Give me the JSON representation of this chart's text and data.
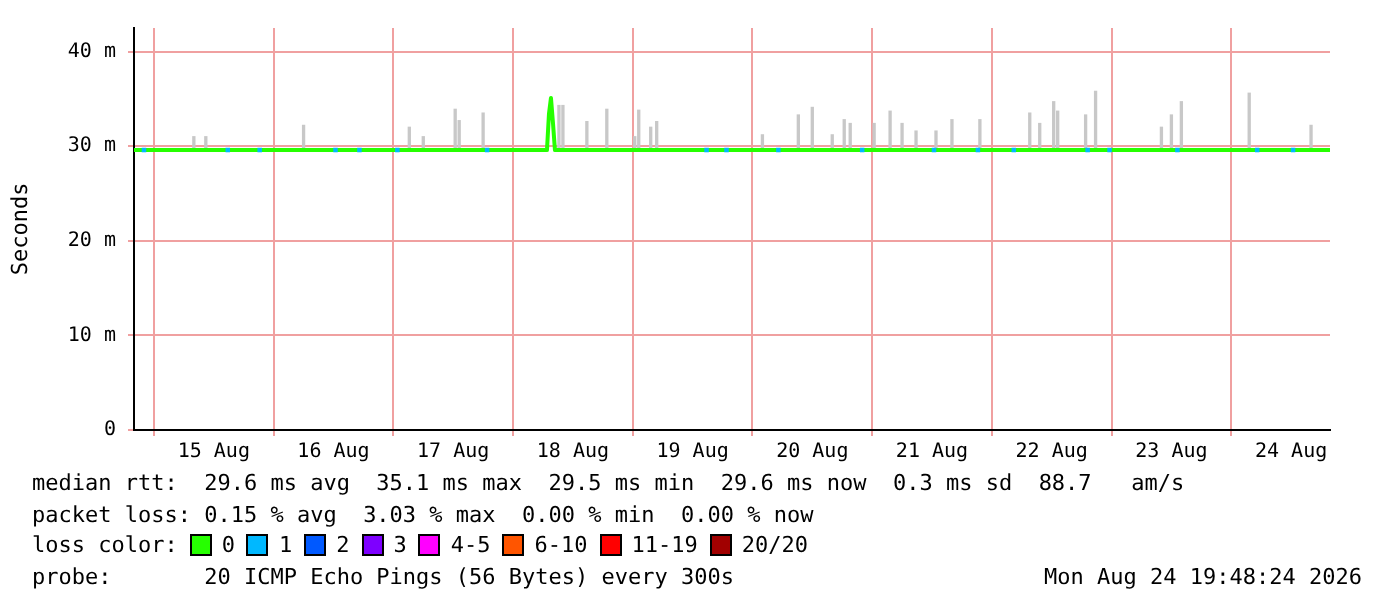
{
  "chart_data": {
    "type": "line",
    "ylabel": "Seconds",
    "legend_title": "loss color:",
    "legend": "bottom",
    "grid": true,
    "xlim": [
      "2026-08-14T20:00",
      "2026-08-24T19:48"
    ],
    "xticks": [
      {
        "value": "2026-08-15T12:00",
        "label": "15 Aug"
      },
      {
        "value": "2026-08-16T12:00",
        "label": "16 Aug"
      },
      {
        "value": "2026-08-17T12:00",
        "label": "17 Aug"
      },
      {
        "value": "2026-08-18T12:00",
        "label": "18 Aug"
      },
      {
        "value": "2026-08-19T12:00",
        "label": "19 Aug"
      },
      {
        "value": "2026-08-20T12:00",
        "label": "20 Aug"
      },
      {
        "value": "2026-08-21T12:00",
        "label": "21 Aug"
      },
      {
        "value": "2026-08-22T12:00",
        "label": "22 Aug"
      },
      {
        "value": "2026-08-23T12:00",
        "label": "23 Aug"
      },
      {
        "value": "2026-08-24T12:00",
        "label": "24 Aug"
      }
    ],
    "ylim": [
      0,
      42.5
    ],
    "yticks": [
      0,
      {
        "value": 10,
        "label": "10 m"
      },
      {
        "value": 20,
        "label": "20 m"
      },
      {
        "value": 30,
        "label": "30 m"
      },
      {
        "value": 40,
        "label": "40 m"
      }
    ],
    "series": [
      {
        "type": "bar",
        "color": "#c8c8c8",
        "base": [
          29.6,
          29.6,
          29.6,
          29.6,
          29.6,
          29.6,
          29.6,
          29.6,
          29.6,
          29.6,
          29.6,
          29.6,
          29.6,
          29.6,
          29.6,
          29.6,
          29.6,
          29.6,
          29.6,
          29.6,
          29.6,
          29.6,
          29.6,
          29.6,
          29.6,
          29.6,
          29.6,
          29.6,
          29.6,
          29.6,
          29.6,
          29.6,
          29.6,
          29.6,
          29.6,
          29.6,
          29.6,
          29.6,
          29.6,
          29.6
        ],
        "x": [
          "2026-08-15T08:00",
          "2026-08-15T10:24",
          "2026-08-16T06:00",
          "2026-08-17T03:12",
          "2026-08-17T06:00",
          "2026-08-17T12:24",
          "2026-08-17T13:12",
          "2026-08-17T18:00",
          "2026-08-18T09:12",
          "2026-08-18T10:00",
          "2026-08-18T14:48",
          "2026-08-18T18:48",
          "2026-08-19T00:24",
          "2026-08-19T01:12",
          "2026-08-19T03:36",
          "2026-08-19T04:48",
          "2026-08-20T02:00",
          "2026-08-20T09:12",
          "2026-08-20T12:00",
          "2026-08-20T16:00",
          "2026-08-20T18:24",
          "2026-08-20T19:36",
          "2026-08-21T00:24",
          "2026-08-21T03:36",
          "2026-08-21T06:00",
          "2026-08-21T08:48",
          "2026-08-21T12:48",
          "2026-08-21T16:00",
          "2026-08-21T21:36",
          "2026-08-22T07:36",
          "2026-08-22T09:36",
          "2026-08-22T12:24",
          "2026-08-22T13:12",
          "2026-08-22T18:48",
          "2026-08-22T20:48",
          "2026-08-23T10:00",
          "2026-08-23T12:00",
          "2026-08-23T14:00",
          "2026-08-24T03:36",
          "2026-08-24T16:00"
        ],
        "values": [
          1.4,
          1.4,
          2.6,
          2.4,
          1.4,
          4.3,
          3.1,
          3.9,
          4.7,
          4.7,
          3.0,
          4.3,
          1.4,
          4.2,
          2.4,
          3.0,
          1.6,
          3.7,
          4.5,
          1.6,
          3.2,
          2.8,
          2.8,
          4.1,
          2.8,
          2.0,
          2.0,
          3.2,
          3.2,
          3.9,
          2.8,
          5.1,
          4.1,
          3.7,
          6.2,
          2.4,
          3.7,
          5.1,
          6.0,
          2.6
        ]
      },
      {
        "name": "0",
        "color": "#26ff00",
        "marker": "none",
        "x": [
          "2026-08-14T20:00",
          "2026-08-16T00:00",
          "2026-08-17T00:00",
          "2026-08-18T00:00",
          "2026-08-18T06:48",
          "2026-08-18T07:12",
          "2026-08-18T07:36",
          "2026-08-18T08:00",
          "2026-08-18T08:24",
          "2026-08-19T00:00",
          "2026-08-20T00:00",
          "2026-08-21T00:00",
          "2026-08-22T00:00",
          "2026-08-23T00:00",
          "2026-08-24T00:00",
          "2026-08-24T19:48"
        ],
        "values": [
          29.6,
          29.6,
          29.6,
          29.6,
          29.6,
          33.4,
          35.1,
          32.5,
          29.6,
          29.6,
          29.6,
          29.6,
          29.6,
          29.6,
          29.6,
          29.6
        ]
      },
      {
        "name": "1",
        "type": "scatter",
        "color": "#00b8ff",
        "marker": "square",
        "x": [
          "2026-08-14T22:00",
          "2026-08-15T14:48",
          "2026-08-15T21:12",
          "2026-08-16T12:24",
          "2026-08-16T17:12",
          "2026-08-17T00:48",
          "2026-08-17T18:48",
          "2026-08-19T14:48",
          "2026-08-19T18:48",
          "2026-08-20T05:12",
          "2026-08-20T22:00",
          "2026-08-21T12:24",
          "2026-08-21T21:12",
          "2026-08-22T04:24",
          "2026-08-22T19:12",
          "2026-08-22T23:36",
          "2026-08-23T13:12",
          "2026-08-24T05:12",
          "2026-08-24T12:24"
        ],
        "values": [
          29.6,
          29.6,
          29.6,
          29.6,
          29.6,
          29.6,
          29.6,
          29.6,
          29.6,
          29.6,
          29.6,
          29.6,
          29.6,
          29.6,
          29.6,
          29.6,
          29.6,
          29.6,
          29.6
        ]
      },
      {
        "name": "2",
        "type": "scatter",
        "color": "#0059ff",
        "marker": "square"
      },
      {
        "name": "3",
        "type": "scatter",
        "color": "#7e00ff",
        "marker": "square"
      },
      {
        "name": "4-5",
        "type": "scatter",
        "color": "#ff00ff",
        "marker": "square"
      },
      {
        "name": "6-10",
        "type": "scatter",
        "color": "#ff5500",
        "marker": "square"
      },
      {
        "name": "11-19",
        "type": "scatter",
        "color": "#ff0000",
        "marker": "square"
      },
      {
        "name": "20/20",
        "type": "scatter",
        "color": "#a10000",
        "marker": "square"
      }
    ],
    "annotations": [
      "median rtt:  29.6 ms avg  35.1 ms max  29.5 ms min  29.6 ms now  0.3 ms sd  88.7   am/s",
      "packet loss: 0.15 % avg  3.03 % max  0.00 % min  0.00 % now",
      "probe:       20 ICMP Echo Pings (56 Bytes) every 300s",
      "Mon Aug 24 19:48:24 2026"
    ]
  }
}
